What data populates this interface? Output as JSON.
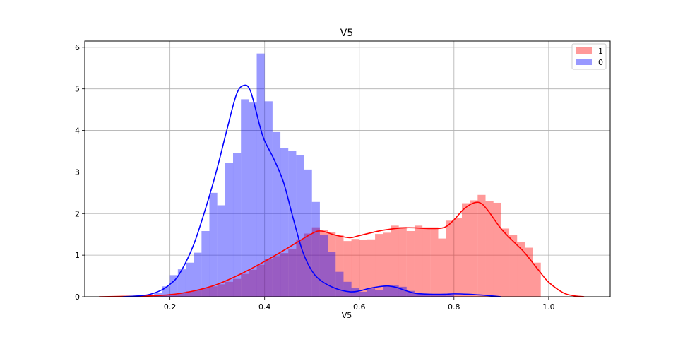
{
  "chart_data": {
    "type": "histogram",
    "title": "V5",
    "xlabel": "V5",
    "ylabel": "",
    "xlim": [
      0.02,
      1.13
    ],
    "ylim": [
      0,
      6.15
    ],
    "xticks": [
      0.2,
      0.4,
      0.6,
      0.8,
      1.0
    ],
    "xtick_labels": [
      "0.2",
      "0.4",
      "0.6",
      "0.8",
      "1.0"
    ],
    "yticks": [
      0,
      1,
      2,
      3,
      4,
      5,
      6
    ],
    "ytick_labels": [
      "0",
      "1",
      "2",
      "3",
      "4",
      "5",
      "6"
    ],
    "grid": true,
    "legend_position": "top-right",
    "bin_width": 0.0167,
    "series": [
      {
        "name": "1",
        "color": "#ff0000",
        "bins": [
          [
            0.15,
            0.03
          ],
          [
            0.1667,
            0.04
          ],
          [
            0.1833,
            0.05
          ],
          [
            0.2,
            0.07
          ],
          [
            0.2167,
            0.1
          ],
          [
            0.2333,
            0.13
          ],
          [
            0.25,
            0.17
          ],
          [
            0.2667,
            0.21
          ],
          [
            0.2833,
            0.25
          ],
          [
            0.3,
            0.3
          ],
          [
            0.3167,
            0.36
          ],
          [
            0.3333,
            0.43
          ],
          [
            0.35,
            0.55
          ],
          [
            0.3667,
            0.65
          ],
          [
            0.3833,
            0.77
          ],
          [
            0.4,
            0.9
          ],
          [
            0.4167,
            0.98
          ],
          [
            0.4333,
            1.05
          ],
          [
            0.45,
            1.15
          ],
          [
            0.4667,
            1.38
          ],
          [
            0.4833,
            1.52
          ],
          [
            0.5,
            1.67
          ],
          [
            0.5167,
            1.6
          ],
          [
            0.5333,
            1.55
          ],
          [
            0.55,
            1.48
          ],
          [
            0.5667,
            1.34
          ],
          [
            0.5833,
            1.39
          ],
          [
            0.6,
            1.37
          ],
          [
            0.6167,
            1.38
          ],
          [
            0.6333,
            1.51
          ],
          [
            0.65,
            1.54
          ],
          [
            0.6667,
            1.71
          ],
          [
            0.6833,
            1.68
          ],
          [
            0.7,
            1.58
          ],
          [
            0.7167,
            1.71
          ],
          [
            0.7333,
            1.67
          ],
          [
            0.75,
            1.67
          ],
          [
            0.7667,
            1.4
          ],
          [
            0.7833,
            1.83
          ],
          [
            0.8,
            1.9
          ],
          [
            0.8167,
            2.25
          ],
          [
            0.8333,
            2.32
          ],
          [
            0.85,
            2.45
          ],
          [
            0.8667,
            2.31
          ],
          [
            0.8833,
            2.26
          ],
          [
            0.9,
            1.64
          ],
          [
            0.9167,
            1.48
          ],
          [
            0.9333,
            1.32
          ],
          [
            0.95,
            1.18
          ],
          [
            0.9667,
            0.82
          ]
        ],
        "kde_x": [
          0.05,
          0.1,
          0.15,
          0.2,
          0.25,
          0.3,
          0.35,
          0.4,
          0.45,
          0.5,
          0.52,
          0.55,
          0.58,
          0.6,
          0.65,
          0.7,
          0.75,
          0.78,
          0.8,
          0.82,
          0.84,
          0.855,
          0.87,
          0.9,
          0.93,
          0.95,
          0.98,
          1.0,
          1.03,
          1.05,
          1.075
        ],
        "kde_y": [
          0.0,
          0.01,
          0.02,
          0.05,
          0.14,
          0.3,
          0.55,
          0.85,
          1.18,
          1.52,
          1.58,
          1.48,
          1.42,
          1.47,
          1.6,
          1.66,
          1.64,
          1.67,
          1.85,
          2.1,
          2.25,
          2.26,
          2.1,
          1.63,
          1.28,
          1.05,
          0.62,
          0.35,
          0.1,
          0.03,
          0.0
        ]
      },
      {
        "name": "0",
        "color": "#0000ff",
        "bins": [
          [
            0.1667,
            0.09
          ],
          [
            0.1833,
            0.25
          ],
          [
            0.2,
            0.52
          ],
          [
            0.2167,
            0.66
          ],
          [
            0.2333,
            0.82
          ],
          [
            0.25,
            1.06
          ],
          [
            0.2667,
            1.58
          ],
          [
            0.2833,
            2.5
          ],
          [
            0.3,
            2.2
          ],
          [
            0.3167,
            3.22
          ],
          [
            0.3333,
            3.45
          ],
          [
            0.35,
            4.75
          ],
          [
            0.3667,
            4.67
          ],
          [
            0.3833,
            5.85
          ],
          [
            0.4,
            4.7
          ],
          [
            0.4167,
            3.96
          ],
          [
            0.4333,
            3.57
          ],
          [
            0.45,
            3.5
          ],
          [
            0.4667,
            3.4
          ],
          [
            0.4833,
            3.06
          ],
          [
            0.5,
            2.28
          ],
          [
            0.5167,
            1.48
          ],
          [
            0.5333,
            1.08
          ],
          [
            0.55,
            0.6
          ],
          [
            0.5667,
            0.36
          ],
          [
            0.5833,
            0.22
          ],
          [
            0.6,
            0.12
          ],
          [
            0.6167,
            0.2
          ],
          [
            0.6333,
            0.17
          ],
          [
            0.65,
            0.25
          ],
          [
            0.6667,
            0.27
          ],
          [
            0.6833,
            0.24
          ],
          [
            0.7,
            0.14
          ],
          [
            0.7167,
            0.1
          ],
          [
            0.7333,
            0.07
          ],
          [
            0.75,
            0.05
          ],
          [
            0.7667,
            0.04
          ],
          [
            0.7833,
            0.03
          ]
        ],
        "kde_x": [
          0.1,
          0.15,
          0.18,
          0.2,
          0.22,
          0.25,
          0.28,
          0.3,
          0.32,
          0.34,
          0.355,
          0.37,
          0.39,
          0.4,
          0.42,
          0.44,
          0.46,
          0.48,
          0.5,
          0.52,
          0.55,
          0.58,
          0.6,
          0.62,
          0.64,
          0.66,
          0.68,
          0.7,
          0.72,
          0.75,
          0.78,
          0.8,
          0.83,
          0.87,
          0.9
        ],
        "kde_y": [
          0.0,
          0.04,
          0.15,
          0.3,
          0.55,
          1.25,
          2.3,
          3.1,
          4.0,
          4.85,
          5.08,
          4.95,
          4.1,
          3.75,
          3.3,
          2.75,
          1.9,
          1.1,
          0.62,
          0.38,
          0.2,
          0.12,
          0.14,
          0.2,
          0.24,
          0.26,
          0.22,
          0.14,
          0.08,
          0.06,
          0.06,
          0.07,
          0.06,
          0.03,
          0.0
        ]
      }
    ]
  }
}
